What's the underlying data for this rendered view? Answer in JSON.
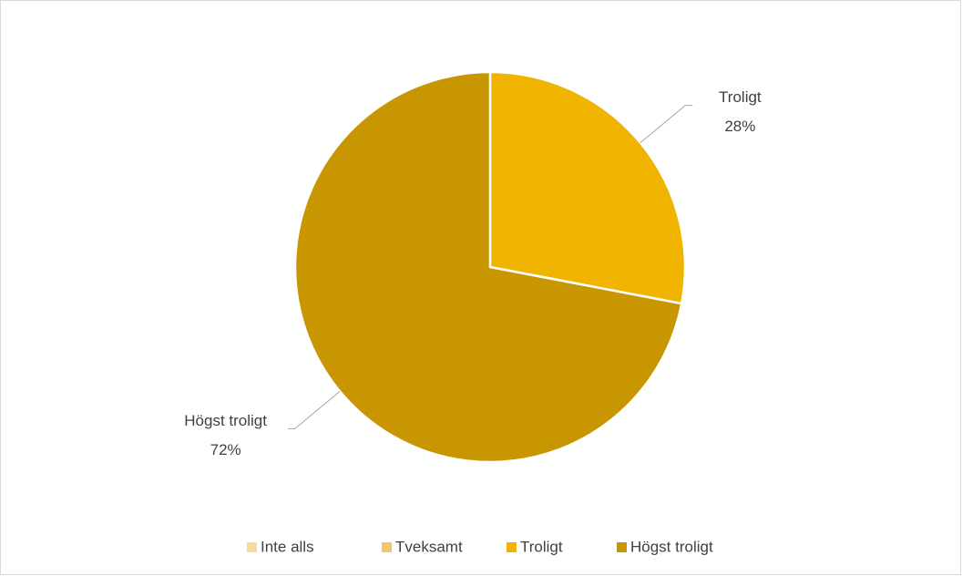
{
  "chart_data": {
    "type": "pie",
    "categories": [
      "Inte alls",
      "Tveksamt",
      "Troligt",
      "Högst troligt"
    ],
    "values": [
      0,
      0,
      28,
      72
    ],
    "value_labels": [
      null,
      null,
      "28%",
      "72%"
    ],
    "colors": [
      "#f8d9a0",
      "#f5c66a",
      "#f0b400",
      "#c89600"
    ],
    "legend": "bottom"
  }
}
